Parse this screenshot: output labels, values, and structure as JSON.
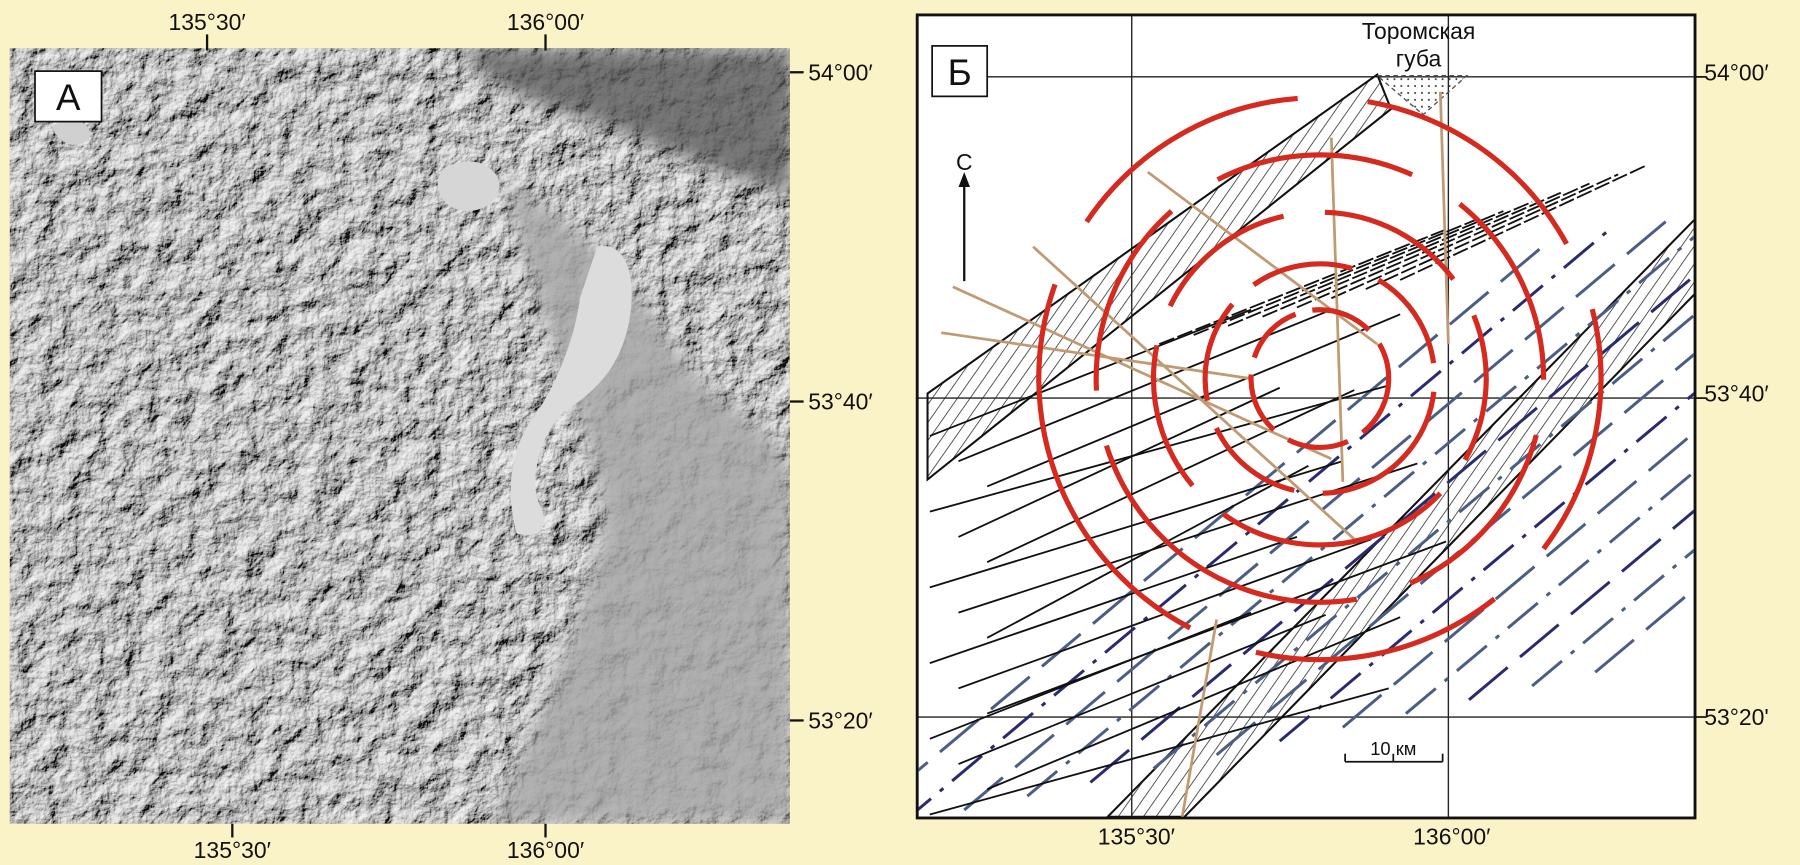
{
  "panels": [
    {
      "label": "А",
      "top_labels": [
        "135°30′",
        "136°00′"
      ],
      "right_labels": [
        "54°00′",
        "53°40′",
        "53°20′"
      ],
      "bottom_labels": [
        "135°30′",
        "136°00′"
      ]
    },
    {
      "label": "Б",
      "place_name": [
        "Торомская",
        "губа"
      ],
      "north_label": "С",
      "scale_label": "10 км",
      "right_labels": [
        "54°00′",
        "53°40′",
        "53°20'"
      ],
      "bottom_labels": [
        "135°30′",
        "136°00′"
      ]
    }
  ]
}
